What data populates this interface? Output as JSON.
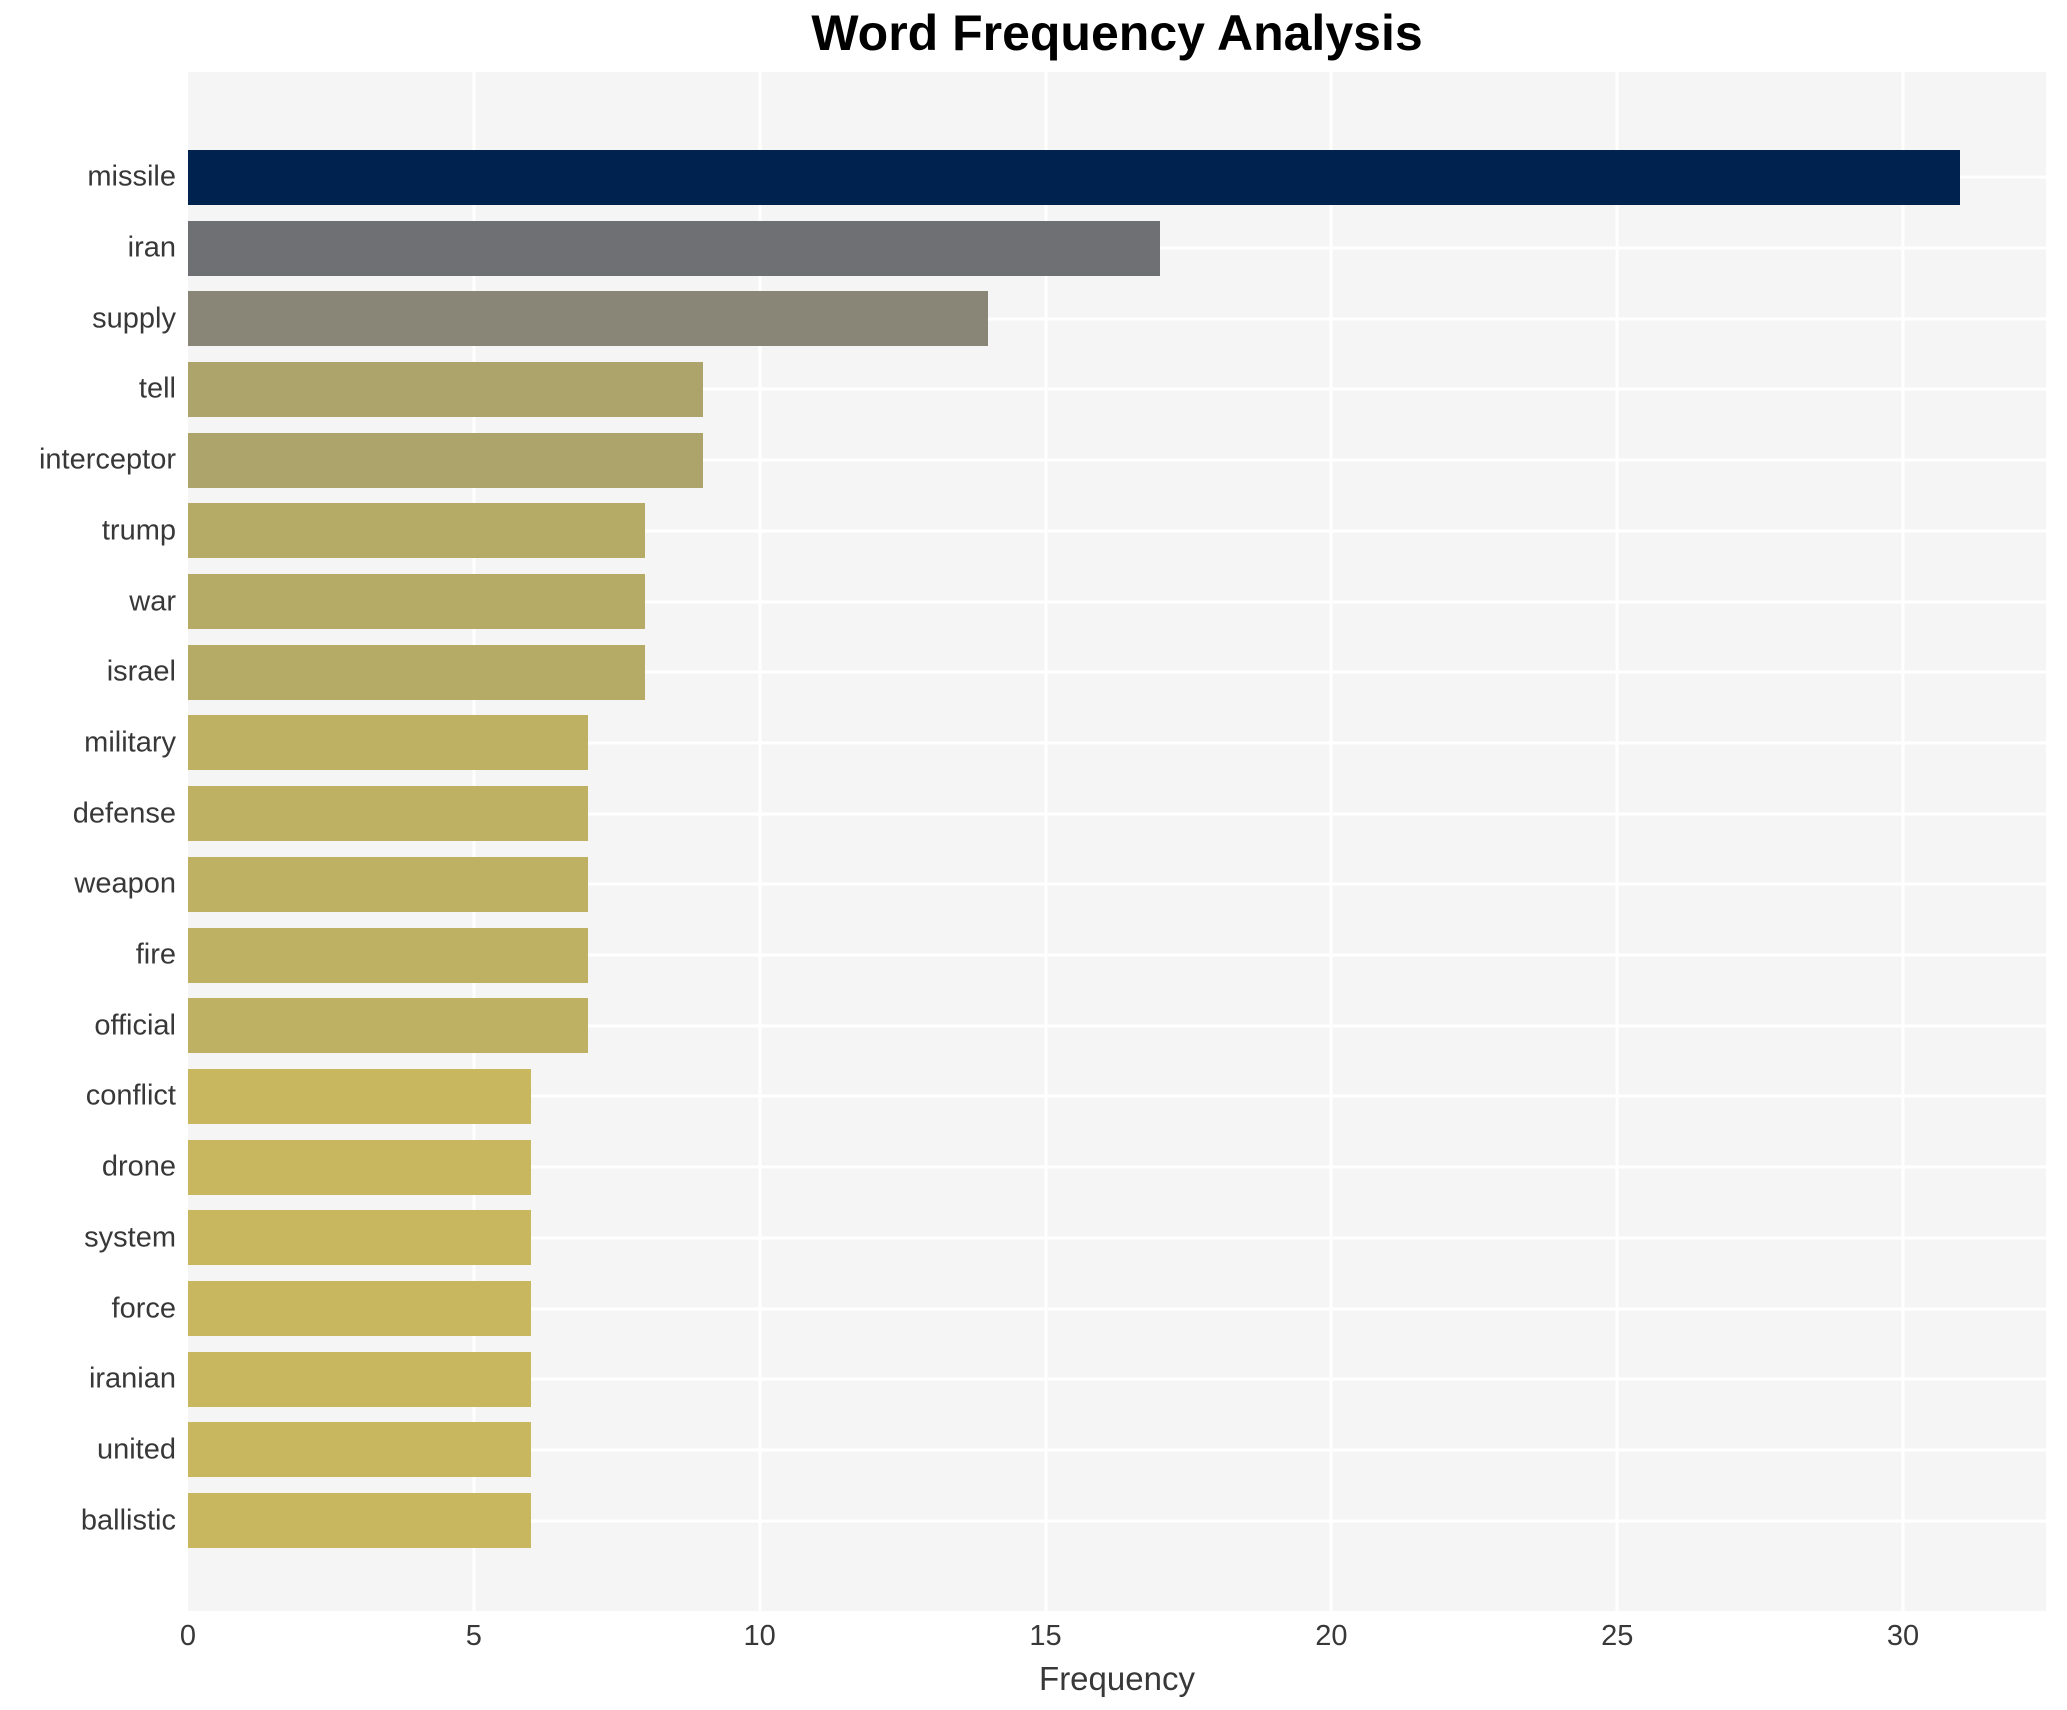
{
  "chart_data": {
    "type": "bar",
    "orientation": "horizontal",
    "title": "Word Frequency Analysis",
    "xlabel": "Frequency",
    "ylabel": "",
    "categories": [
      "missile",
      "iran",
      "supply",
      "tell",
      "interceptor",
      "trump",
      "war",
      "israel",
      "military",
      "defense",
      "weapon",
      "fire",
      "official",
      "conflict",
      "drone",
      "system",
      "force",
      "iranian",
      "united",
      "ballistic"
    ],
    "values": [
      31,
      17,
      14,
      9,
      9,
      8,
      8,
      8,
      7,
      7,
      7,
      7,
      7,
      6,
      6,
      6,
      6,
      6,
      6,
      6
    ],
    "bar_colors": [
      "#00224e",
      "#6f7073",
      "#898677",
      "#aca46b",
      "#aca46b",
      "#b5ab66",
      "#b5ab66",
      "#b5ab66",
      "#bfb163",
      "#bfb163",
      "#bfb163",
      "#bfb163",
      "#bfb163",
      "#c9b75f",
      "#c9b75f",
      "#c9b75f",
      "#c9b75f",
      "#c9b75f",
      "#c9b75f",
      "#c9b75f"
    ],
    "xlim": [
      0,
      32.5
    ],
    "xticks": [
      0,
      5,
      10,
      15,
      20,
      25,
      30
    ],
    "grid": true,
    "legend": false,
    "plot_bg_color": "#f5f5f6",
    "grid_color": "#ffffff",
    "text_color": "#383838",
    "title_color": "#000000"
  }
}
